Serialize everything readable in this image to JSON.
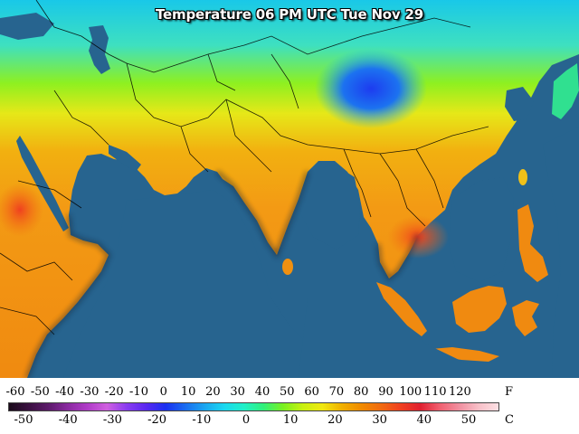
{
  "title": "Temperature 06 PM UTC Tue Nov 29",
  "colors": {
    "ocean": "#27648f",
    "border": "#000000",
    "shadow": "#1e2a33"
  },
  "legend": {
    "fahrenheit_unit": "F",
    "celsius_unit": "C",
    "fahrenheit_ticks": [
      "-60",
      "-50",
      "-40",
      "-30",
      "-20",
      "-10",
      "0",
      "10",
      "20",
      "30",
      "40",
      "50",
      "60",
      "70",
      "80",
      "90",
      "100",
      "110",
      "120"
    ],
    "celsius_ticks": [
      "-50",
      "-40",
      "-30",
      "-20",
      "-10",
      "0",
      "10",
      "20",
      "30",
      "40",
      "50"
    ],
    "scale_colors": [
      "#1a0a1a",
      "#3a1040",
      "#5c1a6a",
      "#8a2aa0",
      "#b03cc8",
      "#d060e0",
      "#8a3cf0",
      "#5a28f0",
      "#1a30f0",
      "#1a6cf0",
      "#1aa6f0",
      "#1ad8f0",
      "#20f0c8",
      "#30f07a",
      "#7af020",
      "#c8f010",
      "#f0e810",
      "#f0b000",
      "#f08a00",
      "#f06a10",
      "#f04020",
      "#e02030",
      "#f06070",
      "#f090a0",
      "#f8c0c8",
      "#fce0e4"
    ]
  }
}
